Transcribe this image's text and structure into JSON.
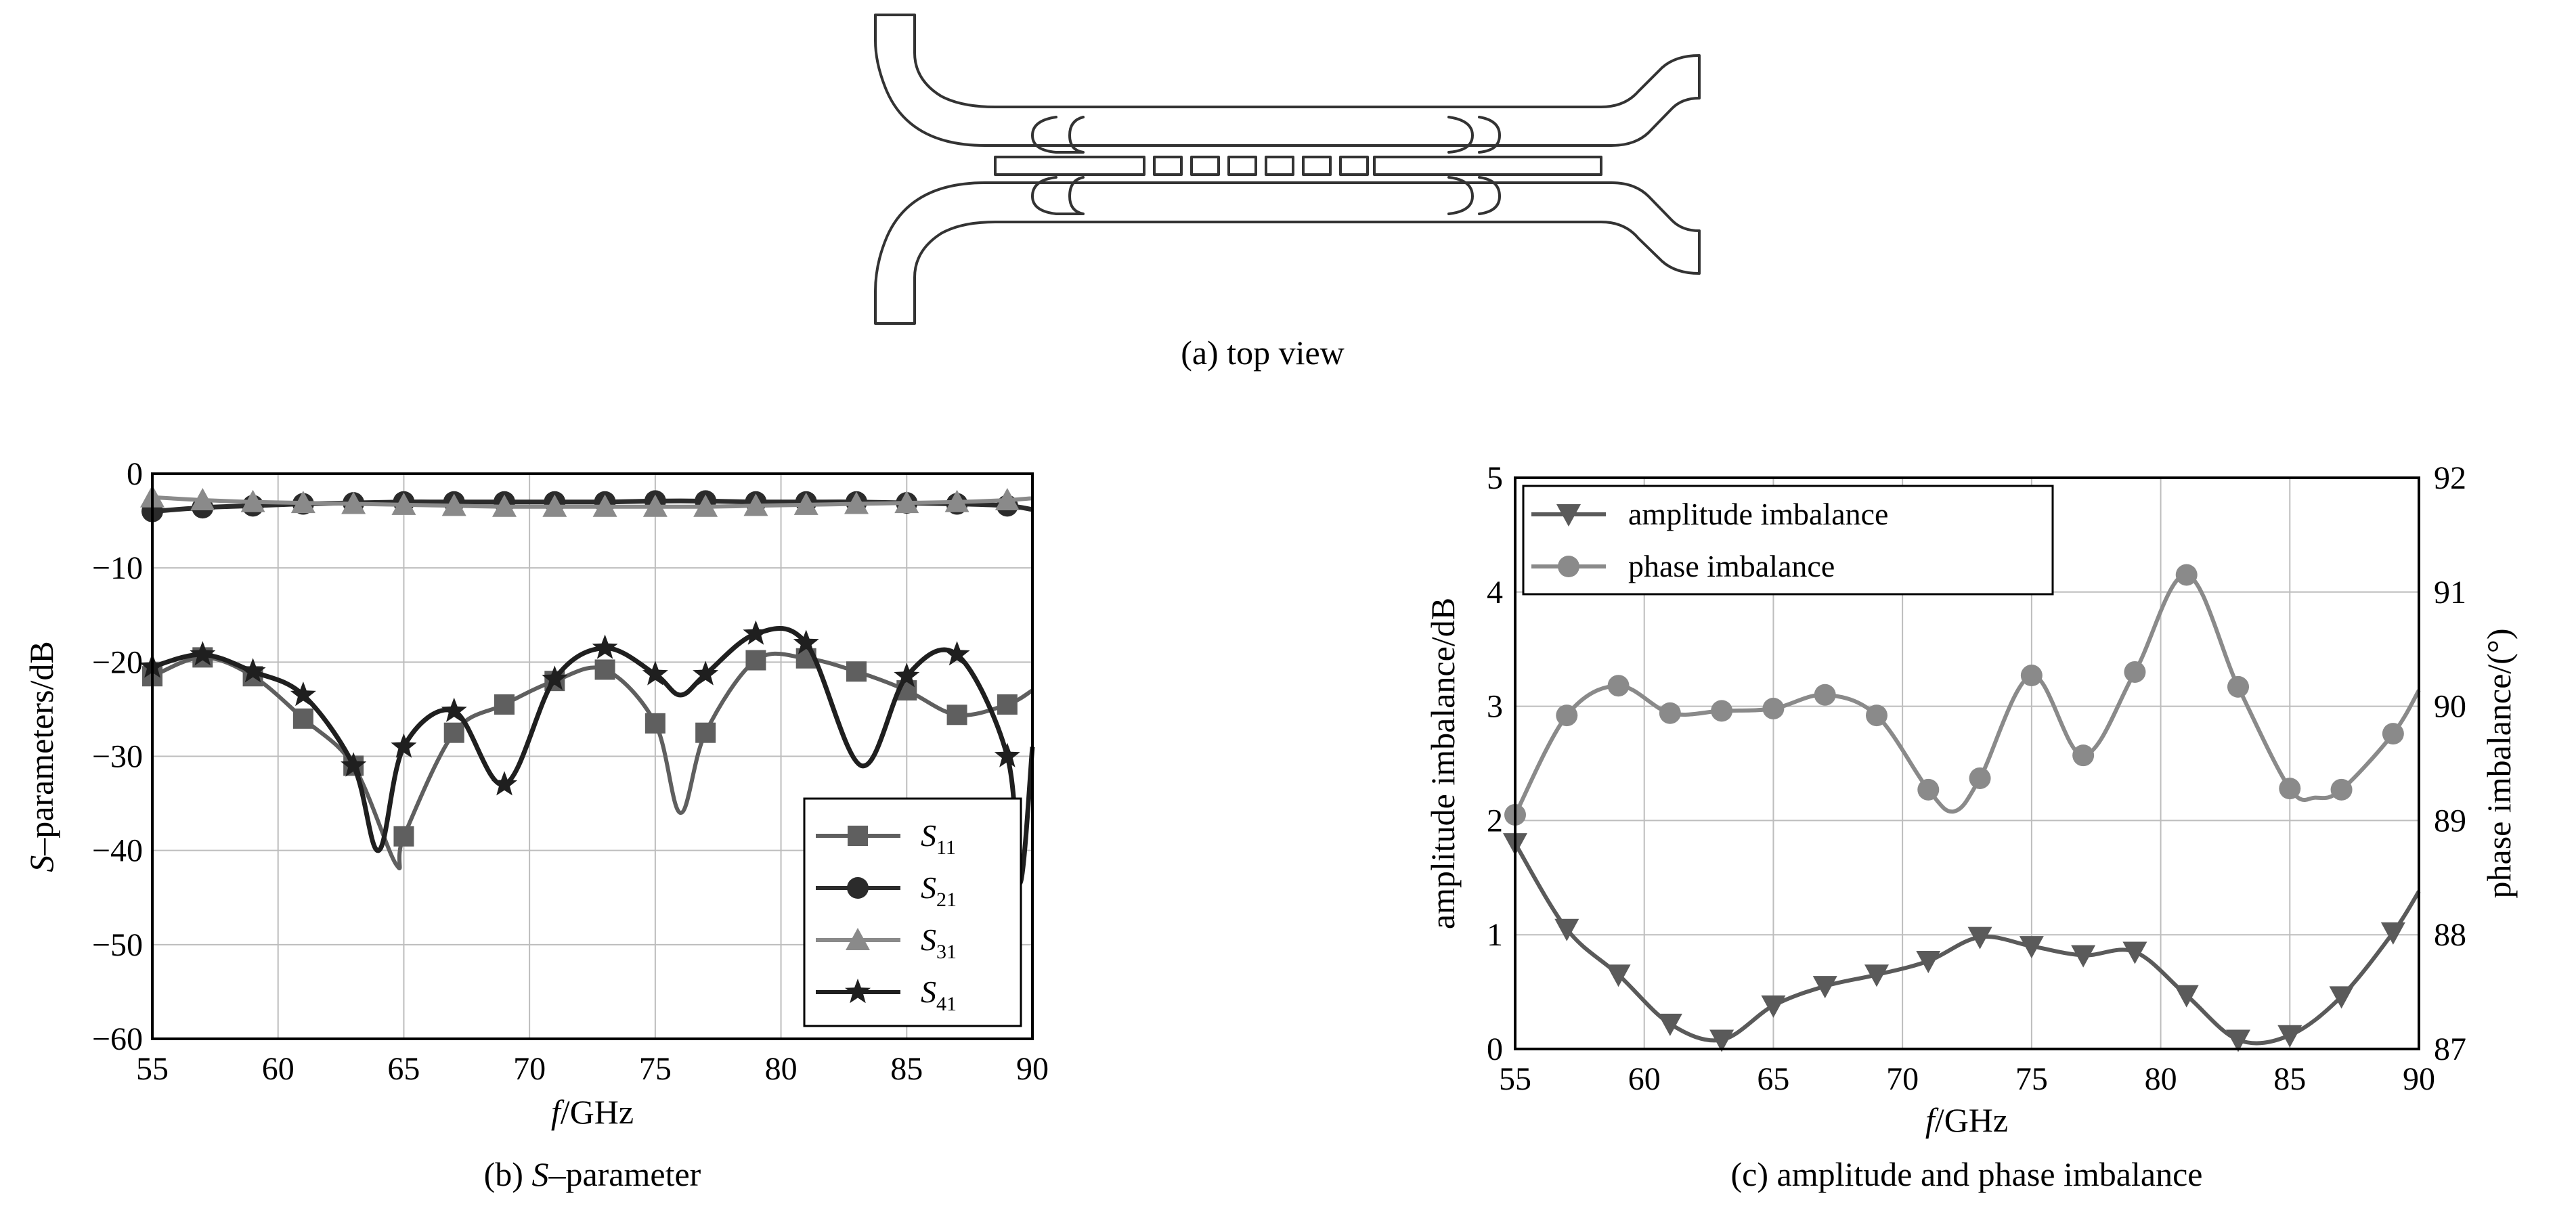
{
  "captions": {
    "a": "(a) top view",
    "b_prefix": "(b) ",
    "b_var": "S",
    "b_rest": "–parameter",
    "c": "(c) amplitude and phase imbalance"
  },
  "colors": {
    "s11": "#5f5f5f",
    "s21": "#2b2b2b",
    "s31": "#8a8a8a",
    "s41": "#1f1f1f",
    "amplitude": "#5a5a5a",
    "phase": "#8a8a8a",
    "grid": "#bdbdbd",
    "axis": "#000000",
    "layout": "#333333"
  },
  "chart_data": [
    {
      "type": "line",
      "panel": "b",
      "xlabel_var": "f",
      "xlabel_rest": "/GHz",
      "ylabel_var": "S",
      "ylabel_rest": "–parameters/dB",
      "xlim": [
        55,
        90
      ],
      "ylim": [
        -60,
        0
      ],
      "xticks": [
        55,
        60,
        65,
        70,
        75,
        80,
        85,
        90
      ],
      "yticks": [
        0,
        -10,
        -20,
        -30,
        -40,
        -50,
        -60
      ],
      "ytick_labels": [
        "0",
        "−10",
        "−20",
        "−30",
        "−40",
        "−50",
        "−60"
      ],
      "grid": true,
      "legend_position": "bottom-right",
      "series": [
        {
          "name": "S11",
          "name_var": "S",
          "name_sub": "11",
          "marker": "square",
          "color_key": "s11",
          "x": [
            55,
            57,
            59,
            61,
            63,
            64.7,
            65,
            67,
            69,
            71,
            73,
            75,
            76,
            77,
            79,
            81,
            83,
            85,
            87,
            89,
            90
          ],
          "y": [
            -21.5,
            -19.5,
            -21.5,
            -26.0,
            -31.0,
            -41.5,
            -38.5,
            -27.5,
            -24.5,
            -22.0,
            -20.8,
            -26.5,
            -36.0,
            -27.5,
            -19.8,
            -19.6,
            -21.0,
            -23.0,
            -25.6,
            -24.5,
            -23.0
          ]
        },
        {
          "name": "S21",
          "name_var": "S",
          "name_sub": "21",
          "marker": "circle",
          "color_key": "s21",
          "x": [
            55,
            57,
            59,
            61,
            63,
            65,
            67,
            69,
            71,
            73,
            75,
            77,
            79,
            81,
            83,
            85,
            87,
            89,
            90
          ],
          "y": [
            -4.0,
            -3.6,
            -3.4,
            -3.2,
            -3.1,
            -3.0,
            -3.0,
            -3.0,
            -3.0,
            -3.0,
            -2.9,
            -2.9,
            -3.0,
            -3.0,
            -3.0,
            -3.1,
            -3.2,
            -3.4,
            -3.8
          ]
        },
        {
          "name": "S31",
          "name_var": "S",
          "name_sub": "31",
          "marker": "triangle",
          "color_key": "s31",
          "x": [
            55,
            57,
            59,
            61,
            63,
            65,
            67,
            69,
            71,
            73,
            75,
            77,
            79,
            81,
            83,
            85,
            87,
            89,
            90
          ],
          "y": [
            -2.5,
            -2.8,
            -3.0,
            -3.1,
            -3.2,
            -3.3,
            -3.4,
            -3.5,
            -3.5,
            -3.5,
            -3.5,
            -3.5,
            -3.4,
            -3.3,
            -3.2,
            -3.1,
            -3.0,
            -2.8,
            -2.6
          ]
        },
        {
          "name": "S41",
          "name_var": "S",
          "name_sub": "41",
          "marker": "star",
          "color_key": "s41",
          "x": [
            55,
            57,
            59,
            61,
            63,
            64,
            65,
            67,
            69,
            71,
            73,
            75,
            76,
            77,
            79,
            81,
            83.2,
            85,
            87,
            89,
            89.5,
            90
          ],
          "y": [
            -20.5,
            -19.2,
            -21.0,
            -23.5,
            -31.0,
            -40.0,
            -29.0,
            -25.2,
            -33.0,
            -21.8,
            -18.5,
            -21.3,
            -23.5,
            -21.3,
            -17.0,
            -18.0,
            -31.0,
            -21.5,
            -19.2,
            -30.0,
            -43.5,
            -29.0
          ]
        }
      ]
    },
    {
      "type": "line",
      "panel": "c",
      "xlabel_var": "f",
      "xlabel_rest": "/GHz",
      "ylabel": "amplitude imbalance/dB",
      "y2label": "phase imbalance/(°)",
      "xlim": [
        55,
        90
      ],
      "ylim": [
        0,
        5
      ],
      "y2lim": [
        87,
        92
      ],
      "xticks": [
        55,
        60,
        65,
        70,
        75,
        80,
        85,
        90
      ],
      "yticks": [
        0,
        1,
        2,
        3,
        4,
        5
      ],
      "y2ticks": [
        87,
        88,
        89,
        90,
        91,
        92
      ],
      "grid": true,
      "legend_position": "top-left",
      "series": [
        {
          "name": "amplitude imbalance",
          "marker": "triangle-down",
          "axis": "left",
          "color_key": "amplitude",
          "x": [
            55,
            57,
            59,
            61,
            63,
            65,
            67,
            69,
            71,
            73,
            75,
            77,
            79,
            81,
            83,
            85,
            87,
            89,
            90
          ],
          "y": [
            1.8,
            1.05,
            0.65,
            0.22,
            0.08,
            0.38,
            0.55,
            0.65,
            0.77,
            0.98,
            0.9,
            0.82,
            0.85,
            0.47,
            0.08,
            0.12,
            0.46,
            1.02,
            1.38
          ]
        },
        {
          "name": "phase imbalance",
          "marker": "circle",
          "axis": "right",
          "color_key": "phase",
          "x": [
            55,
            57,
            59,
            61,
            63,
            65,
            67,
            69,
            71,
            72,
            73,
            75,
            77,
            79,
            81,
            83,
            85,
            86,
            87,
            89,
            90
          ],
          "y": [
            89.05,
            89.92,
            90.18,
            89.94,
            89.96,
            89.98,
            90.1,
            89.92,
            89.27,
            89.08,
            89.37,
            90.27,
            89.57,
            90.3,
            91.15,
            90.17,
            89.28,
            89.2,
            89.27,
            89.76,
            90.14
          ]
        }
      ]
    }
  ]
}
